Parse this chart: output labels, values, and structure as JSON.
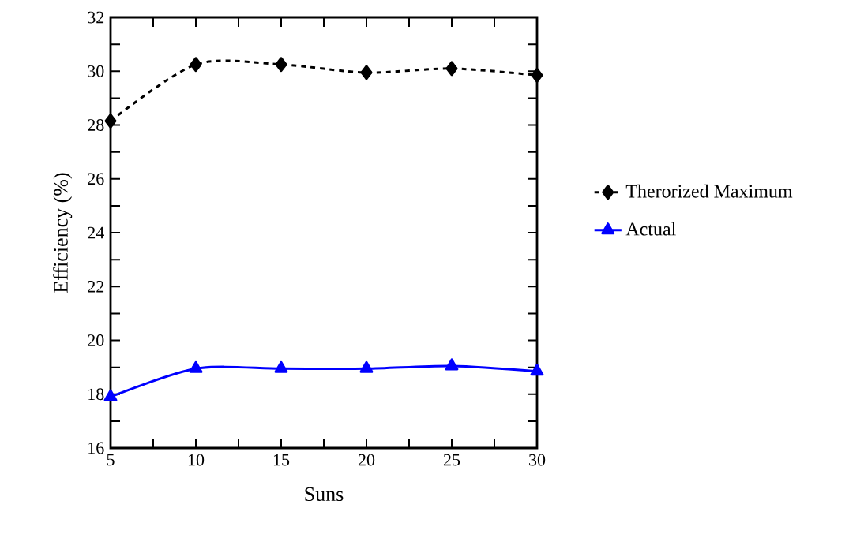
{
  "chart_data": {
    "type": "line",
    "xlabel": "Suns",
    "ylabel": "Efficiency (%)",
    "x": [
      5,
      10,
      15,
      20,
      25,
      30
    ],
    "series": [
      {
        "name": "Therorized Maximum",
        "color": "#000000",
        "marker": "diamond",
        "line_style": "dashed",
        "values": [
          28.15,
          30.25,
          30.25,
          29.95,
          30.1,
          29.85
        ]
      },
      {
        "name": "Actual",
        "color": "#0000ff",
        "marker": "triangle",
        "line_style": "solid",
        "values": [
          17.9,
          18.95,
          18.95,
          18.95,
          19.05,
          18.85
        ]
      }
    ],
    "xlim": [
      5,
      30
    ],
    "xticks": [
      5,
      10,
      15,
      20,
      25,
      30
    ],
    "ylim": [
      16,
      32
    ],
    "yticks": [
      16,
      18,
      20,
      22,
      24,
      26,
      28,
      30,
      32
    ],
    "grid": false,
    "legend": "right"
  }
}
